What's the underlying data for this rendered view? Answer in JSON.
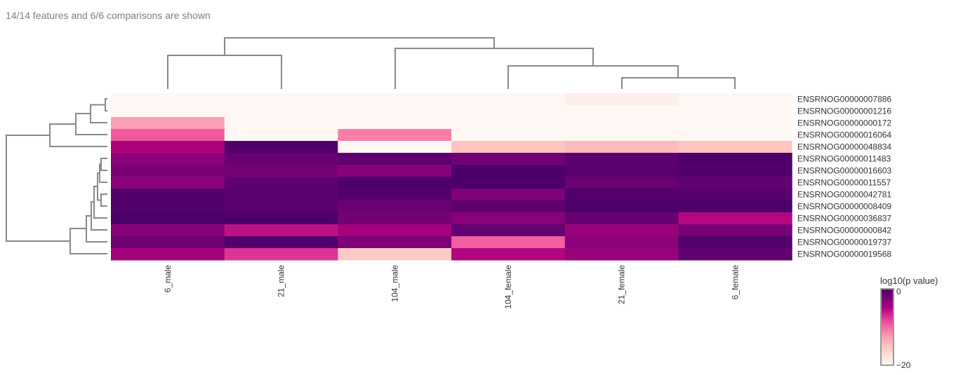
{
  "header": {
    "subtitle": "14/14 features and 6/6 comparisons are shown"
  },
  "chart_data": {
    "type": "heatmap",
    "columns": [
      "6_male",
      "21_male",
      "104_male",
      "104_female",
      "21_female",
      "6_female"
    ],
    "rows": [
      "ENSRNOG00000007886",
      "ENSRNOG00000001216",
      "ENSRNOG00000000172",
      "ENSRNOG00000016064",
      "ENSRNOG00000048834",
      "ENSRNOG00000011483",
      "ENSRNOG00000016603",
      "ENSRNOG00000011557",
      "ENSRNOG00000042781",
      "ENSRNOG00000008409",
      "ENSRNOG00000036837",
      "ENSRNOG00000000842",
      "ENSRNOG00000019737",
      "ENSRNOG00000019568"
    ],
    "values": [
      [
        -20,
        -20,
        -20,
        -20,
        -19,
        -20
      ],
      [
        -20,
        -20,
        -20,
        -20,
        -20,
        -20
      ],
      [
        -12.5,
        -20,
        -20,
        -20,
        -20,
        -20
      ],
      [
        -9.3,
        -20,
        -11,
        -20,
        -20,
        -20
      ],
      [
        -5,
        -0.5,
        -20,
        -15,
        -14.3,
        -15
      ],
      [
        -3.3,
        -1.7,
        -1.2,
        -2,
        -1,
        -0.2
      ],
      [
        -2.5,
        -2.3,
        -3.1,
        -0.2,
        -0.8,
        -0.4
      ],
      [
        -3.3,
        -1.1,
        -0.2,
        -0.2,
        -1.8,
        -1.3
      ],
      [
        -0.5,
        -1,
        -0.5,
        -2.7,
        -0.5,
        -0.7
      ],
      [
        -0.4,
        -1,
        -1.8,
        -1.1,
        -0.2,
        -0.2
      ],
      [
        -0.2,
        -0.2,
        -2.2,
        -3.2,
        -1.6,
        -5.3
      ],
      [
        -3.1,
        -5.8,
        -4.5,
        -1.3,
        -4,
        -2.4
      ],
      [
        -2,
        -0.5,
        -2.7,
        -9.5,
        -3.3,
        -0.4
      ],
      [
        -4.5,
        -7.5,
        -15.5,
        -5.2,
        -4,
        -1.3
      ]
    ],
    "colorbar": {
      "title": "log10(p value)",
      "max_label": "0",
      "min_label": "−20",
      "range": [
        -20,
        0
      ]
    },
    "colorscale": [
      "#fff7f3",
      "#fde0dd",
      "#fcc5c0",
      "#fa9fb5",
      "#f768a1",
      "#dd3497",
      "#ae017e",
      "#7a0177",
      "#49006a"
    ],
    "dendrogram_color": "#888888"
  }
}
